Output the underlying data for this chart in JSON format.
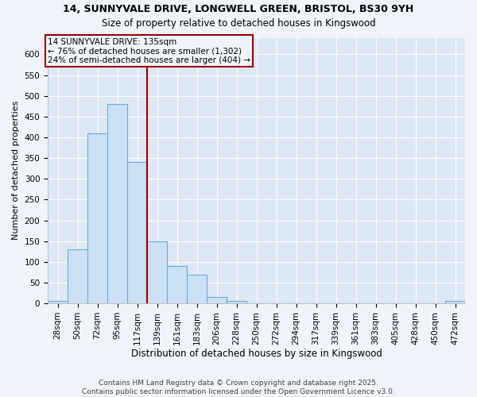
{
  "title": "14, SUNNYVALE DRIVE, LONGWELL GREEN, BRISTOL, BS30 9YH",
  "subtitle": "Size of property relative to detached houses in Kingswood",
  "xlabel": "Distribution of detached houses by size in Kingswood",
  "ylabel": "Number of detached properties",
  "bar_labels": [
    "28sqm",
    "50sqm",
    "72sqm",
    "95sqm",
    "117sqm",
    "139sqm",
    "161sqm",
    "183sqm",
    "206sqm",
    "228sqm",
    "250sqm",
    "272sqm",
    "294sqm",
    "317sqm",
    "339sqm",
    "361sqm",
    "383sqm",
    "405sqm",
    "428sqm",
    "450sqm",
    "472sqm"
  ],
  "bar_values": [
    5,
    130,
    410,
    480,
    340,
    150,
    90,
    70,
    15,
    5,
    0,
    0,
    0,
    0,
    0,
    0,
    0,
    0,
    0,
    0,
    5
  ],
  "property_line_x": 4.5,
  "annotation_line1": "14 SUNNYVALE DRIVE: 135sqm",
  "annotation_line2": "← 76% of detached houses are smaller (1,302)",
  "annotation_line3": "24% of semi-detached houses are larger (404) →",
  "bar_color": "#cce0f5",
  "bar_edge_color": "#6aaad4",
  "line_color": "#990000",
  "footer_line1": "Contains HM Land Registry data © Crown copyright and database right 2025.",
  "footer_line2": "Contains public sector information licensed under the Open Government Licence v3.0.",
  "plot_bg_color": "#dce9f5",
  "fig_bg_color": "#f0f4fa",
  "ylim": [
    0,
    640
  ],
  "yticks": [
    0,
    50,
    100,
    150,
    200,
    250,
    300,
    350,
    400,
    450,
    500,
    550,
    600
  ],
  "title_fontsize": 9,
  "subtitle_fontsize": 8.5,
  "xlabel_fontsize": 8.5,
  "ylabel_fontsize": 8,
  "tick_fontsize": 7.5,
  "annotation_fontsize": 7.5,
  "footer_fontsize": 6.5
}
